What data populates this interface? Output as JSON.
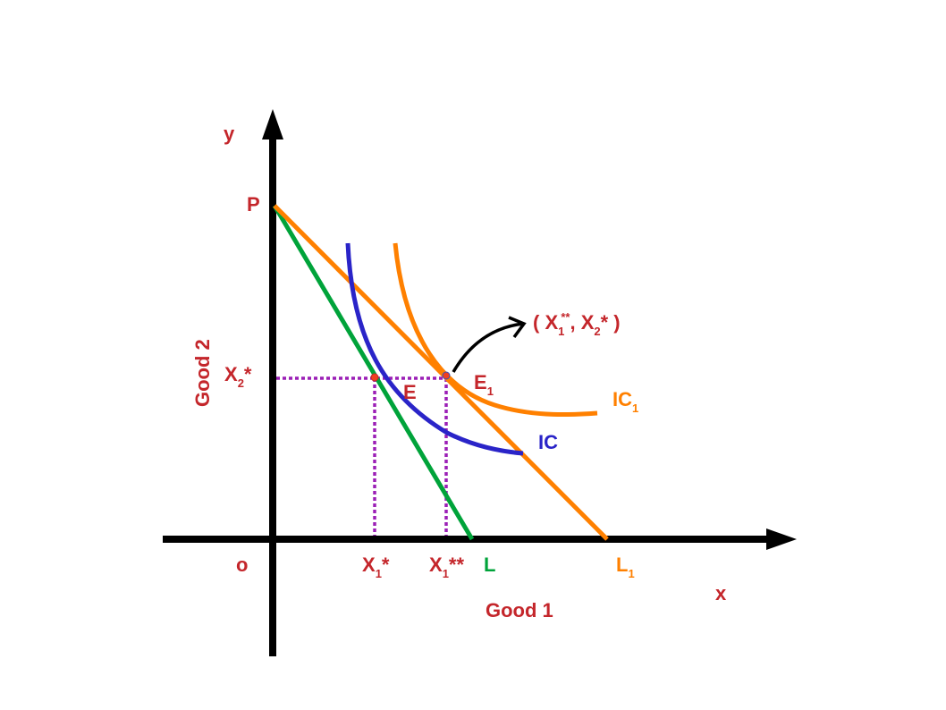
{
  "colors": {
    "axis": "#000000",
    "text": "#c4262b",
    "budget_L": "#00a33a",
    "budget_L1": "#ff8000",
    "ic": "#2a24c8",
    "ic1": "#ff8000",
    "guides": "#9b1fb6"
  },
  "axes": {
    "y_label": "y",
    "x_label": "x",
    "origin": "o",
    "y_title": "Good 2",
    "x_title": "Good 1"
  },
  "labels": {
    "P": "P",
    "x2_star": {
      "main": "X",
      "sub": "2",
      "sup": "*"
    },
    "E": "E",
    "E1": {
      "main": "E",
      "sub": "1"
    },
    "IC": "IC",
    "IC1": {
      "main": "IC",
      "sub": "1"
    },
    "x1_star": {
      "main": "X",
      "sub": "1",
      "sup": "*"
    },
    "x1_2star": {
      "main": "X",
      "sub": "1",
      "sup": "**"
    },
    "L": "L",
    "L1": {
      "main": "L",
      "sub": "1"
    },
    "annotation": {
      "open": "( X",
      "sub1": "1",
      "sup1": "**",
      "mid": ", X",
      "sub2": "2",
      "sup2": "* )"
    }
  }
}
